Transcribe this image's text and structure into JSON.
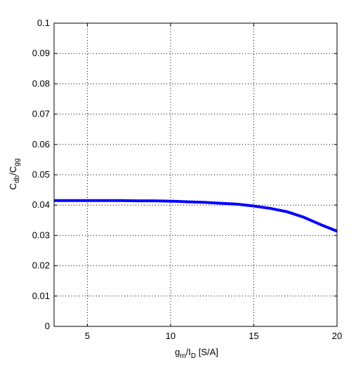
{
  "chart_data": {
    "type": "line",
    "title": "",
    "xlabel": "g_m/I_D [S/A]",
    "xlabel_parts": {
      "g": "g",
      "g_sub": "m",
      "slash": "/I",
      "i_sub": "D",
      "unit": " [S/A]"
    },
    "ylabel": "C_db/C_gg",
    "ylabel_parts": {
      "c1": "C",
      "c1_sub": "db",
      "slash": "/C",
      "c2_sub": "gg"
    },
    "xlim": [
      3,
      20
    ],
    "ylim": [
      0,
      0.1
    ],
    "xticks": [
      5,
      10,
      15,
      20
    ],
    "xtick_labels": [
      "5",
      "10",
      "15",
      "20"
    ],
    "yticks": [
      0,
      0.01,
      0.02,
      0.03,
      0.04,
      0.05,
      0.06,
      0.07,
      0.08,
      0.09,
      0.1
    ],
    "ytick_labels": [
      "0",
      "0.01",
      "0.02",
      "0.03",
      "0.04",
      "0.05",
      "0.06",
      "0.07",
      "0.08",
      "0.09",
      "0.1"
    ],
    "grid": true,
    "series": [
      {
        "color": "#0000ff",
        "x": [
          3,
          4,
          5,
          6,
          7,
          8,
          9,
          10,
          11,
          12,
          13,
          14,
          15,
          16,
          17,
          18,
          18.5,
          19,
          19.5,
          20
        ],
        "y": [
          0.0415,
          0.0415,
          0.0415,
          0.0415,
          0.0415,
          0.0414,
          0.0414,
          0.0413,
          0.0411,
          0.0409,
          0.0406,
          0.0403,
          0.0397,
          0.0389,
          0.0378,
          0.036,
          0.0348,
          0.0336,
          0.0325,
          0.0314
        ]
      }
    ]
  }
}
